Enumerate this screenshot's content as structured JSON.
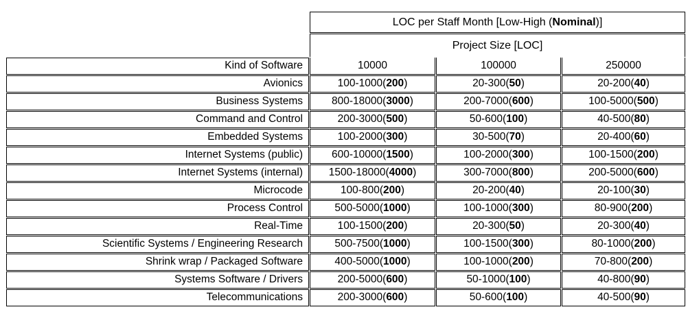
{
  "table": {
    "title_prefix": "LOC per Staff Month [Low-High (",
    "title_bold": "Nominal",
    "title_suffix": ")]",
    "subtitle": "Project Size [LOC]",
    "kind_header": "Kind of Software",
    "size_headers": [
      "10000",
      "100000",
      "250000"
    ],
    "cell_format": "{range}({nominal})",
    "border_color": "#000000",
    "background_color": "#ffffff",
    "rows": [
      {
        "kind": "Avionics",
        "cells": [
          {
            "range": "100-1000",
            "nominal": "200"
          },
          {
            "range": "20-300",
            "nominal": "50"
          },
          {
            "range": "20-200",
            "nominal": "40"
          }
        ]
      },
      {
        "kind": "Business Systems",
        "cells": [
          {
            "range": "800-18000",
            "nominal": "3000"
          },
          {
            "range": "200-7000",
            "nominal": "600"
          },
          {
            "range": "100-5000",
            "nominal": "500"
          }
        ]
      },
      {
        "kind": "Command and Control",
        "cells": [
          {
            "range": "200-3000",
            "nominal": "500"
          },
          {
            "range": "50-600",
            "nominal": "100"
          },
          {
            "range": "40-500",
            "nominal": "80"
          }
        ]
      },
      {
        "kind": "Embedded Systems",
        "cells": [
          {
            "range": "100-2000",
            "nominal": "300"
          },
          {
            "range": "30-500",
            "nominal": "70"
          },
          {
            "range": "20-400",
            "nominal": "60"
          }
        ]
      },
      {
        "kind": "Internet Systems (public)",
        "cells": [
          {
            "range": "600-10000",
            "nominal": "1500"
          },
          {
            "range": "100-2000",
            "nominal": "300"
          },
          {
            "range": "100-1500",
            "nominal": "200"
          }
        ]
      },
      {
        "kind": "Internet Systems (internal)",
        "cells": [
          {
            "range": "1500-18000",
            "nominal": "4000"
          },
          {
            "range": "300-7000",
            "nominal": "800"
          },
          {
            "range": "200-5000",
            "nominal": "600"
          }
        ]
      },
      {
        "kind": "Microcode",
        "cells": [
          {
            "range": "100-800",
            "nominal": "200"
          },
          {
            "range": "20-200",
            "nominal": "40"
          },
          {
            "range": "20-100",
            "nominal": "30"
          }
        ]
      },
      {
        "kind": "Process Control",
        "cells": [
          {
            "range": "500-5000",
            "nominal": "1000"
          },
          {
            "range": "100-1000",
            "nominal": "300"
          },
          {
            "range": "80-900",
            "nominal": "200"
          }
        ]
      },
      {
        "kind": "Real-Time",
        "cells": [
          {
            "range": "100-1500",
            "nominal": "200"
          },
          {
            "range": "20-300",
            "nominal": "50"
          },
          {
            "range": "20-300",
            "nominal": "40"
          }
        ]
      },
      {
        "kind": "Scientific Systems / Engineering Research",
        "cells": [
          {
            "range": "500-7500",
            "nominal": "1000"
          },
          {
            "range": "100-1500",
            "nominal": "300"
          },
          {
            "range": "80-1000",
            "nominal": "200"
          }
        ]
      },
      {
        "kind": "Shrink wrap / Packaged Software",
        "cells": [
          {
            "range": "400-5000",
            "nominal": "1000"
          },
          {
            "range": "100-1000",
            "nominal": "200"
          },
          {
            "range": "70-800",
            "nominal": "200"
          }
        ]
      },
      {
        "kind": "Systems Software / Drivers",
        "cells": [
          {
            "range": "200-5000",
            "nominal": "600"
          },
          {
            "range": "50-1000",
            "nominal": "100"
          },
          {
            "range": "40-800",
            "nominal": "90"
          }
        ]
      },
      {
        "kind": "Telecommunications",
        "cells": [
          {
            "range": "200-3000",
            "nominal": "600"
          },
          {
            "range": "50-600",
            "nominal": "100"
          },
          {
            "range": "40-500",
            "nominal": "90"
          }
        ]
      }
    ]
  }
}
